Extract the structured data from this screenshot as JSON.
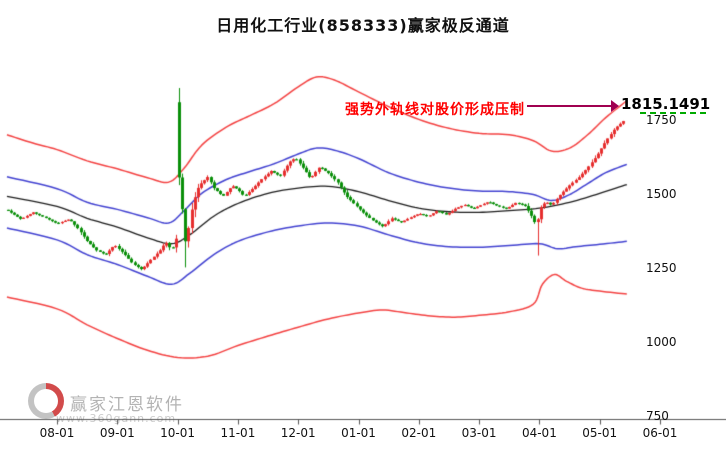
{
  "title": "日用化工行业(858333)赢家极反通道",
  "annotation": {
    "text": "强势外轨线对股价形成压制",
    "value_label": "1815.1491"
  },
  "watermark": {
    "brand": "赢家江恩软件",
    "url": "www.360gann.com"
  },
  "axes": {
    "y_tick_values": [
      1750,
      1500,
      1250,
      1000,
      750
    ],
    "x_ticks": [
      "08-01",
      "09-01",
      "10-01",
      "11-01",
      "12-01",
      "01-01",
      "02-01",
      "03-01",
      "04-01",
      "05-01",
      "06-01"
    ]
  },
  "chart_data": {
    "type": "candlestick",
    "title": "日用化工行业(858333)赢家极反通道",
    "legend": "candlesticks with extreme-reversal channel: red outer bands, blue inner bands, black mid line",
    "x_axis": {
      "tick_labels": [
        "08-01",
        "09-01",
        "10-01",
        "11-01",
        "12-01",
        "01-01",
        "02-01",
        "03-01",
        "04-01",
        "05-01",
        "06-01"
      ],
      "unit": "months relative to 08-01 tick"
    },
    "y_axis": {
      "tick_values": [
        1750,
        1500,
        1250,
        1000,
        750
      ],
      "visible_range": [
        930,
        1920
      ]
    },
    "upper_band_latest": 1815.1491,
    "colors": {
      "up_candle": "#e62e2e",
      "down_candle": "#0a8f0a",
      "outer_band": "#f34040",
      "inner_band": "#4040d0",
      "mid_line": "#1a1a1a",
      "annotation_text": "#ff0000",
      "annotation_arrow": "#a00050",
      "marker_dash": "#00aa00",
      "axis": "#555555"
    },
    "close_keypoints": [
      [
        -0.83,
        1445
      ],
      [
        -0.6,
        1415
      ],
      [
        -0.4,
        1438
      ],
      [
        -0.2,
        1420
      ],
      [
        0,
        1400
      ],
      [
        0.2,
        1415
      ],
      [
        0.35,
        1382
      ],
      [
        0.5,
        1340
      ],
      [
        0.65,
        1310
      ],
      [
        0.8,
        1295
      ],
      [
        0.95,
        1328
      ],
      [
        1.1,
        1300
      ],
      [
        1.25,
        1265
      ],
      [
        1.4,
        1245
      ],
      [
        1.55,
        1278
      ],
      [
        1.7,
        1308
      ],
      [
        1.8,
        1338
      ],
      [
        1.9,
        1310
      ],
      [
        1.98,
        1355
      ],
      [
        2.02,
        1560
      ],
      [
        2.06,
        1480
      ],
      [
        2.1,
        1395
      ],
      [
        2.14,
        1315
      ],
      [
        2.18,
        1385
      ],
      [
        2.25,
        1468
      ],
      [
        2.35,
        1528
      ],
      [
        2.5,
        1558
      ],
      [
        2.6,
        1520
      ],
      [
        2.75,
        1492
      ],
      [
        2.9,
        1528
      ],
      [
        3,
        1515
      ],
      [
        3.1,
        1492
      ],
      [
        3.25,
        1520
      ],
      [
        3.4,
        1552
      ],
      [
        3.55,
        1578
      ],
      [
        3.7,
        1560
      ],
      [
        3.85,
        1608
      ],
      [
        3.95,
        1622
      ],
      [
        4.1,
        1582
      ],
      [
        4.2,
        1552
      ],
      [
        4.35,
        1592
      ],
      [
        4.5,
        1570
      ],
      [
        4.65,
        1540
      ],
      [
        4.8,
        1492
      ],
      [
        4.95,
        1462
      ],
      [
        5.1,
        1432
      ],
      [
        5.25,
        1408
      ],
      [
        5.4,
        1390
      ],
      [
        5.55,
        1418
      ],
      [
        5.7,
        1404
      ],
      [
        5.85,
        1420
      ],
      [
        6,
        1434
      ],
      [
        6.15,
        1424
      ],
      [
        6.3,
        1444
      ],
      [
        6.45,
        1430
      ],
      [
        6.6,
        1450
      ],
      [
        6.75,
        1464
      ],
      [
        6.9,
        1450
      ],
      [
        7,
        1460
      ],
      [
        7.15,
        1474
      ],
      [
        7.3,
        1460
      ],
      [
        7.45,
        1450
      ],
      [
        7.6,
        1470
      ],
      [
        7.75,
        1462
      ],
      [
        7.85,
        1432
      ],
      [
        7.95,
        1392
      ],
      [
        8,
        1450
      ],
      [
        8.1,
        1474
      ],
      [
        8.2,
        1462
      ],
      [
        8.35,
        1500
      ],
      [
        8.5,
        1530
      ],
      [
        8.65,
        1556
      ],
      [
        8.8,
        1590
      ],
      [
        8.95,
        1630
      ],
      [
        9.1,
        1680
      ],
      [
        9.25,
        1722
      ],
      [
        9.4,
        1748
      ]
    ],
    "open_overrides": [
      {
        "m": 2.02,
        "open": 1810
      }
    ],
    "wick_overrides": [
      {
        "m": 2.02,
        "type": "high",
        "value": 1858
      },
      {
        "m": 2.14,
        "type": "low",
        "value": 1252
      },
      {
        "m": 7.95,
        "type": "low",
        "value": 1292
      }
    ],
    "bands": {
      "outer_upper": [
        [
          -0.83,
          1700
        ],
        [
          -0.4,
          1672
        ],
        [
          0,
          1650
        ],
        [
          0.5,
          1612
        ],
        [
          1,
          1585
        ],
        [
          1.5,
          1555
        ],
        [
          1.85,
          1540
        ],
        [
          2.1,
          1585
        ],
        [
          2.4,
          1665
        ],
        [
          2.8,
          1725
        ],
        [
          3.2,
          1765
        ],
        [
          3.6,
          1805
        ],
        [
          4,
          1862
        ],
        [
          4.3,
          1895
        ],
        [
          4.6,
          1885
        ],
        [
          5,
          1845
        ],
        [
          5.5,
          1795
        ],
        [
          6,
          1752
        ],
        [
          6.5,
          1722
        ],
        [
          7,
          1705
        ],
        [
          7.5,
          1700
        ],
        [
          7.9,
          1680
        ],
        [
          8.2,
          1645
        ],
        [
          8.5,
          1655
        ],
        [
          8.8,
          1700
        ],
        [
          9.1,
          1758
        ],
        [
          9.45,
          1815.1491
        ]
      ],
      "inner_upper": [
        [
          -0.83,
          1558
        ],
        [
          0,
          1518
        ],
        [
          0.5,
          1472
        ],
        [
          1,
          1448
        ],
        [
          1.5,
          1420
        ],
        [
          1.85,
          1402
        ],
        [
          2.1,
          1442
        ],
        [
          2.4,
          1502
        ],
        [
          2.8,
          1548
        ],
        [
          3.2,
          1576
        ],
        [
          3.6,
          1602
        ],
        [
          4,
          1635
        ],
        [
          4.3,
          1655
        ],
        [
          4.6,
          1648
        ],
        [
          5,
          1620
        ],
        [
          5.5,
          1572
        ],
        [
          6,
          1540
        ],
        [
          6.5,
          1520
        ],
        [
          7,
          1510
        ],
        [
          7.5,
          1508
        ],
        [
          7.9,
          1498
        ],
        [
          8.2,
          1478
        ],
        [
          8.5,
          1498
        ],
        [
          8.8,
          1535
        ],
        [
          9.1,
          1572
        ],
        [
          9.45,
          1600
        ]
      ],
      "middle": [
        [
          -0.83,
          1492
        ],
        [
          0,
          1458
        ],
        [
          0.5,
          1418
        ],
        [
          1,
          1388
        ],
        [
          1.5,
          1352
        ],
        [
          1.9,
          1332
        ],
        [
          2.2,
          1362
        ],
        [
          2.6,
          1425
        ],
        [
          3,
          1468
        ],
        [
          3.5,
          1502
        ],
        [
          4,
          1520
        ],
        [
          4.5,
          1526
        ],
        [
          5,
          1508
        ],
        [
          5.5,
          1478
        ],
        [
          6,
          1452
        ],
        [
          6.5,
          1440
        ],
        [
          7,
          1438
        ],
        [
          7.5,
          1444
        ],
        [
          8,
          1452
        ],
        [
          8.5,
          1472
        ],
        [
          9,
          1502
        ],
        [
          9.45,
          1532
        ]
      ],
      "inner_lower": [
        [
          -0.83,
          1385
        ],
        [
          0,
          1345
        ],
        [
          0.5,
          1295
        ],
        [
          1,
          1262
        ],
        [
          1.5,
          1222
        ],
        [
          1.9,
          1195
        ],
        [
          2.2,
          1232
        ],
        [
          2.6,
          1295
        ],
        [
          3,
          1340
        ],
        [
          3.5,
          1372
        ],
        [
          4,
          1392
        ],
        [
          4.5,
          1402
        ],
        [
          5,
          1392
        ],
        [
          5.5,
          1362
        ],
        [
          6,
          1335
        ],
        [
          6.5,
          1322
        ],
        [
          7,
          1320
        ],
        [
          7.5,
          1326
        ],
        [
          8,
          1332
        ],
        [
          8.3,
          1315
        ],
        [
          8.6,
          1322
        ],
        [
          9,
          1330
        ],
        [
          9.45,
          1340
        ]
      ],
      "outer_lower": [
        [
          -0.83,
          1152
        ],
        [
          0,
          1112
        ],
        [
          0.5,
          1058
        ],
        [
          1,
          1012
        ],
        [
          1.5,
          972
        ],
        [
          2,
          948
        ],
        [
          2.5,
          952
        ],
        [
          3,
          988
        ],
        [
          3.5,
          1020
        ],
        [
          4,
          1050
        ],
        [
          4.5,
          1078
        ],
        [
          5,
          1098
        ],
        [
          5.4,
          1108
        ],
        [
          5.8,
          1098
        ],
        [
          6.2,
          1088
        ],
        [
          6.6,
          1084
        ],
        [
          7,
          1090
        ],
        [
          7.5,
          1102
        ],
        [
          7.9,
          1128
        ],
        [
          8.05,
          1195
        ],
        [
          8.25,
          1228
        ],
        [
          8.45,
          1205
        ],
        [
          8.7,
          1182
        ],
        [
          9,
          1172
        ],
        [
          9.45,
          1162
        ]
      ]
    }
  }
}
